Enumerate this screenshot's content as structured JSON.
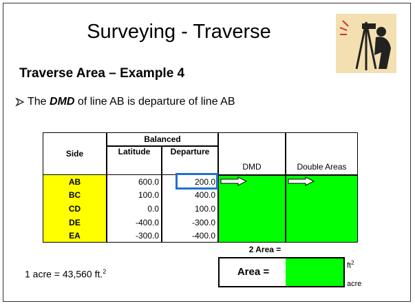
{
  "title": "Surveying - Traverse",
  "subtitle": "Traverse Area – Example 4",
  "bullet": {
    "prefix": "The",
    "emphasis": "DMD",
    "rest": "of line AB is departure of line AB"
  },
  "table": {
    "group_header": "Balanced",
    "headers": [
      "Side",
      "Latitude",
      "Departure",
      "DMD",
      "Double Areas"
    ],
    "rows": [
      [
        "AB",
        "600.0",
        "200.0"
      ],
      [
        "BC",
        "100.0",
        "400.0"
      ],
      [
        "CD",
        "0.0",
        "100.0"
      ],
      [
        "DE",
        "-400.0",
        "-300.0"
      ],
      [
        "EA",
        "-300.0",
        "-400.0"
      ]
    ]
  },
  "two_area_label": "2 Area =",
  "area_label": "Area =",
  "area_units": [
    {
      "base": "ft",
      "sup": "2"
    },
    {
      "base": "acre"
    }
  ],
  "conversion": {
    "text": "1 acre = 43,560 ft.",
    "sup": "2"
  }
}
